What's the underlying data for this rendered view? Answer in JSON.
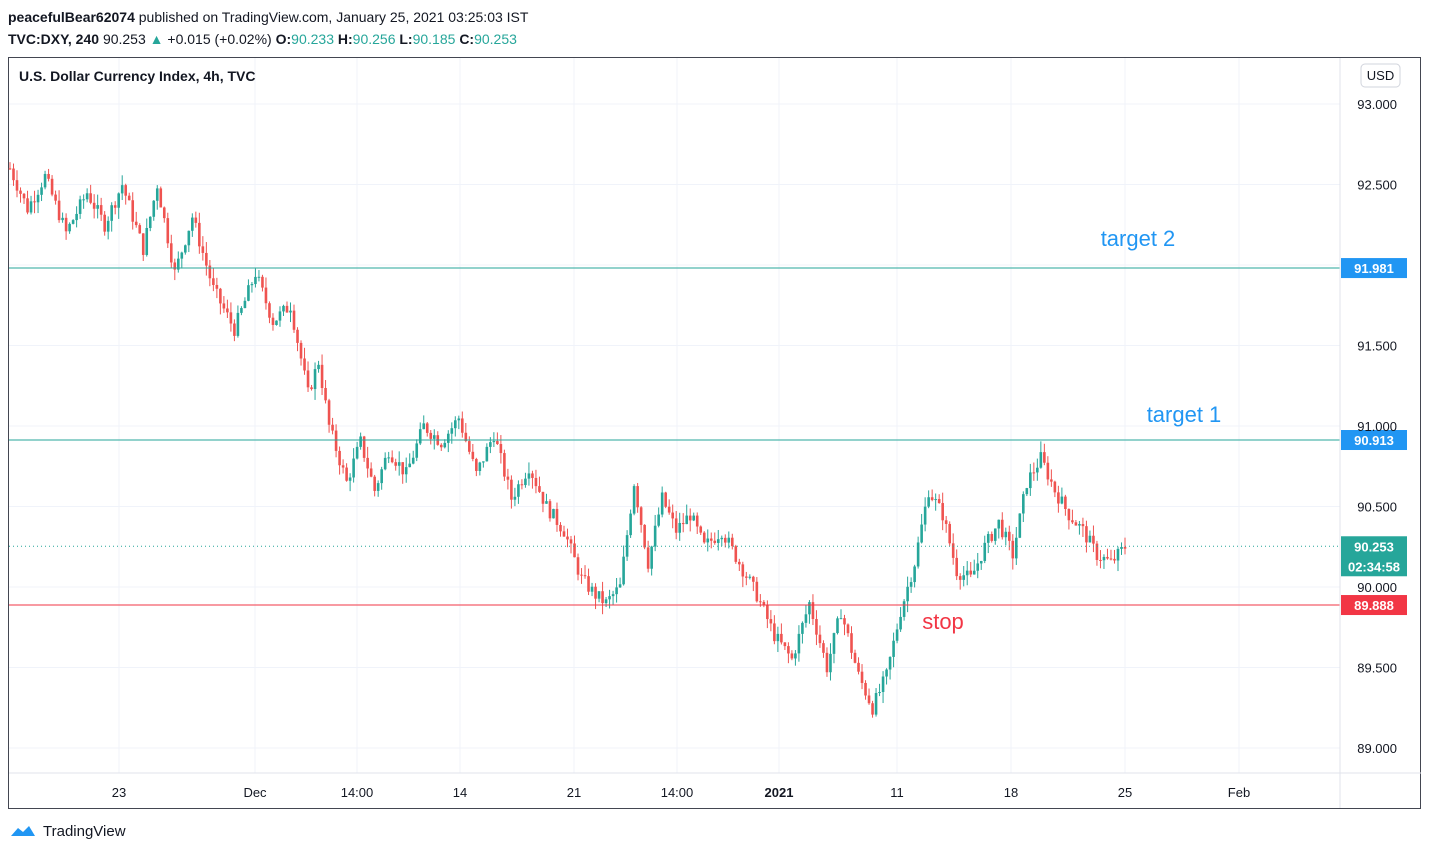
{
  "header": {
    "author": "peacefulBear62074",
    "published": "published on TradingView.com, January 25, 2021 03:25:03 IST",
    "symbol": "TVC:DXY, 240",
    "last": "90.253",
    "change": "+0.015 (+0.02%)",
    "o_label": "O:",
    "o_value": "90.233",
    "h_label": "H:",
    "h_value": "90.256",
    "l_label": "L:",
    "l_value": "90.185",
    "c_label": "C:",
    "c_value": "90.253"
  },
  "chart_title": "U.S. Dollar Currency Index, 4h, TVC",
  "currency_button": "USD",
  "footer_brand": "TradingView",
  "colors": {
    "up": "#26a69a",
    "down": "#ef5350",
    "target_line": "#26a69a",
    "target_label": "#2196f3",
    "stop": "#f23645",
    "grid": "#f0f3fa",
    "axis_text": "#131722"
  },
  "chart_data": {
    "type": "candlestick",
    "title": "U.S. Dollar Currency Index, 4h, TVC",
    "y_ticks": [
      "93.000",
      "92.500",
      "91.500",
      "91.000",
      "90.500",
      "90.000",
      "89.500",
      "89.000"
    ],
    "ylim": [
      88.85,
      93.2
    ],
    "x_ticks": [
      "23",
      "Dec",
      "14:00",
      "14",
      "21",
      "14:00",
      "2021",
      "11",
      "18",
      "25",
      "Feb"
    ],
    "horizontal_lines": [
      {
        "value": 91.981,
        "label": "target 2",
        "price_label": "91.981"
      },
      {
        "value": 90.913,
        "label": "target 1",
        "price_label": "90.913"
      },
      {
        "value": 89.888,
        "label": "stop",
        "price_label": "89.888"
      }
    ],
    "last_price": {
      "value": 90.253,
      "label": "90.253",
      "countdown": "02:34:58"
    },
    "path": [
      [
        0,
        92.6
      ],
      [
        5,
        92.35
      ],
      [
        10,
        92.55
      ],
      [
        16,
        92.2
      ],
      [
        22,
        92.45
      ],
      [
        27,
        92.25
      ],
      [
        32,
        92.5
      ],
      [
        38,
        92.1
      ],
      [
        42,
        92.5
      ],
      [
        47,
        91.95
      ],
      [
        52,
        92.3
      ],
      [
        58,
        91.85
      ],
      [
        64,
        91.6
      ],
      [
        70,
        91.95
      ],
      [
        75,
        91.65
      ],
      [
        80,
        91.75
      ],
      [
        85,
        91.2
      ],
      [
        88,
        91.4
      ],
      [
        91,
        91.0
      ],
      [
        96,
        90.65
      ],
      [
        100,
        90.9
      ],
      [
        104,
        90.6
      ],
      [
        108,
        90.85
      ],
      [
        113,
        90.7
      ],
      [
        118,
        91.0
      ],
      [
        123,
        90.9
      ],
      [
        128,
        91.05
      ],
      [
        133,
        90.7
      ],
      [
        138,
        90.95
      ],
      [
        143,
        90.55
      ],
      [
        148,
        90.75
      ],
      [
        153,
        90.5
      ],
      [
        158,
        90.35
      ],
      [
        163,
        90.05
      ],
      [
        167,
        89.95
      ],
      [
        170,
        89.9
      ],
      [
        174,
        90.0
      ],
      [
        178,
        90.65
      ],
      [
        182,
        90.15
      ],
      [
        186,
        90.55
      ],
      [
        190,
        90.35
      ],
      [
        194,
        90.45
      ],
      [
        198,
        90.25
      ],
      [
        203,
        90.35
      ],
      [
        208,
        90.15
      ],
      [
        213,
        89.95
      ],
      [
        218,
        89.7
      ],
      [
        223,
        89.55
      ],
      [
        228,
        89.9
      ],
      [
        233,
        89.5
      ],
      [
        237,
        89.85
      ],
      [
        242,
        89.45
      ],
      [
        246,
        89.25
      ],
      [
        250,
        89.45
      ],
      [
        254,
        89.85
      ],
      [
        258,
        90.15
      ],
      [
        262,
        90.6
      ],
      [
        266,
        90.45
      ],
      [
        270,
        90.1
      ],
      [
        274,
        90.05
      ],
      [
        278,
        90.25
      ],
      [
        282,
        90.4
      ],
      [
        286,
        90.2
      ],
      [
        290,
        90.65
      ],
      [
        294,
        90.8
      ],
      [
        298,
        90.6
      ],
      [
        302,
        90.45
      ],
      [
        306,
        90.35
      ],
      [
        310,
        90.2
      ],
      [
        314,
        90.15
      ],
      [
        318,
        90.25
      ]
    ]
  }
}
